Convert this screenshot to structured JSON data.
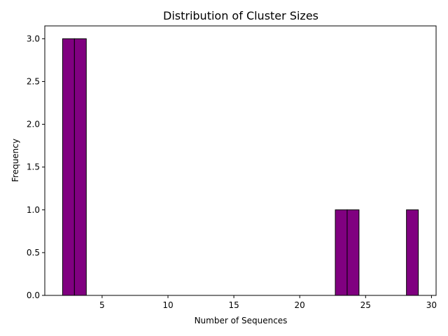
{
  "chart_data": {
    "type": "bar",
    "title": "Distribution of Cluster Sizes",
    "xlabel": "Number of Sequences",
    "ylabel": "Frequency",
    "xlim": [
      0.65,
      30.35
    ],
    "ylim": [
      0,
      3.15
    ],
    "xticks": [
      5,
      10,
      15,
      20,
      25,
      30
    ],
    "yticks": [
      0.0,
      0.5,
      1.0,
      1.5,
      2.0,
      2.5,
      3.0
    ],
    "bin_width": 0.9,
    "bars": [
      {
        "x_start": 2.0,
        "x_end": 2.9,
        "value": 3
      },
      {
        "x_start": 2.9,
        "x_end": 3.8,
        "value": 3
      },
      {
        "x_start": 22.7,
        "x_end": 23.6,
        "value": 1
      },
      {
        "x_start": 23.6,
        "x_end": 24.5,
        "value": 1
      },
      {
        "x_start": 28.1,
        "x_end": 29.0,
        "value": 1
      }
    ],
    "bar_color": "#800080",
    "edge_color": "#000000",
    "grid": false,
    "legend": "none"
  }
}
